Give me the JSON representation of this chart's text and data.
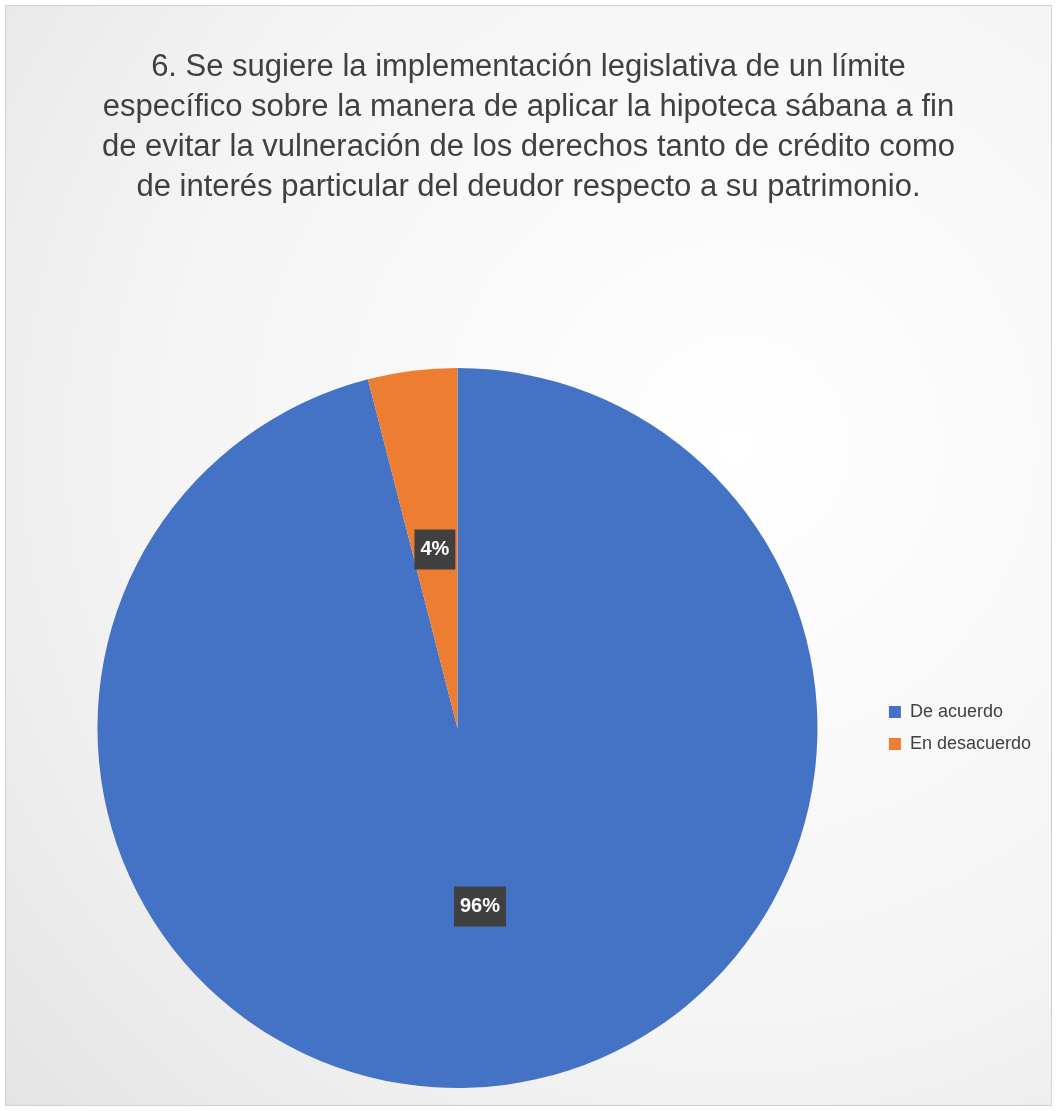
{
  "chart_data": {
    "type": "pie",
    "title": "6. Se sugiere la implementación legislativa de un límite específico sobre la manera de aplicar la hipoteca sábana a fin de evitar la vulneración de los derechos tanto de crédito como de interés particular del deudor respecto a su patrimonio.",
    "categories": [
      "De acuerdo",
      "En desacuerdo"
    ],
    "values": [
      96,
      4
    ],
    "colors": [
      "#4472c4",
      "#ed7d31"
    ],
    "value_labels": [
      "96%",
      "4%"
    ],
    "legend": "right"
  }
}
